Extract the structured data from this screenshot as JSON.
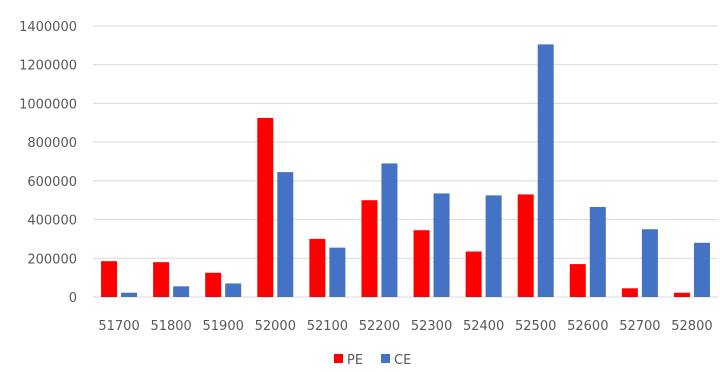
{
  "chart_data": {
    "type": "bar",
    "title": "",
    "xlabel": "",
    "ylabel": "",
    "categories": [
      "51700",
      "51800",
      "51900",
      "52000",
      "52100",
      "52200",
      "52300",
      "52400",
      "52500",
      "52600",
      "52700",
      "52800"
    ],
    "series": [
      {
        "name": "PE",
        "color": "#ff0000",
        "values": [
          185000,
          180000,
          125000,
          925000,
          300000,
          500000,
          345000,
          235000,
          530000,
          170000,
          45000,
          22000
        ]
      },
      {
        "name": "CE",
        "color": "#4472c4",
        "values": [
          22000,
          55000,
          70000,
          645000,
          255000,
          690000,
          535000,
          525000,
          1305000,
          465000,
          350000,
          280000
        ]
      }
    ],
    "ylim": [
      0,
      1400000
    ],
    "yticks": [
      "0",
      "200000",
      "400000",
      "600000",
      "800000",
      "1000000",
      "1200000",
      "1400000"
    ],
    "grid": true,
    "legend": "bottom-center"
  }
}
